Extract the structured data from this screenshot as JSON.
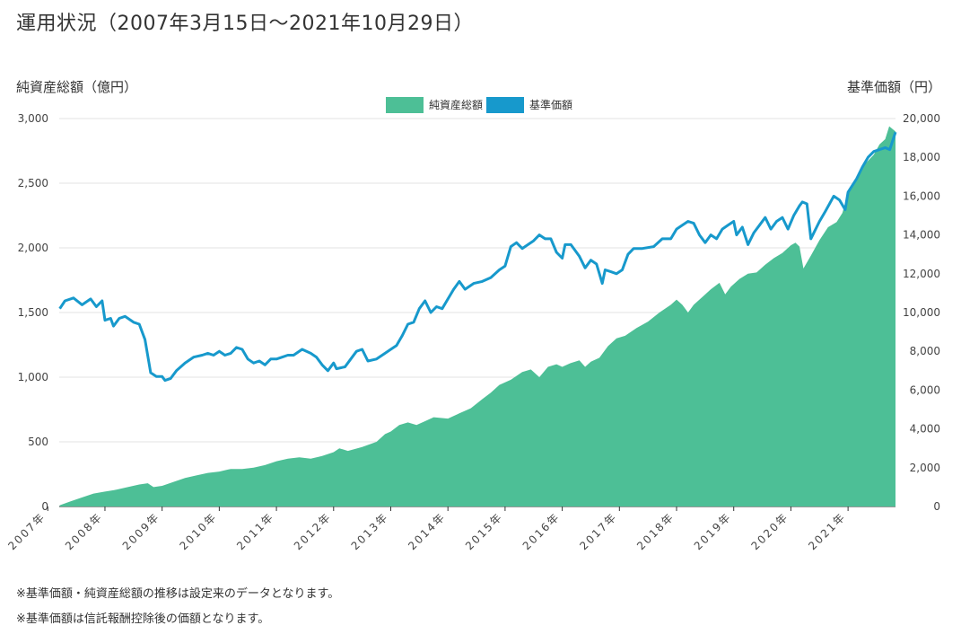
{
  "title": "運用状況（2007年3月15日〜2021年10月29日）",
  "left_axis_title": "純資産総額（億円）",
  "right_axis_title": "基準価額（円）",
  "notes": [
    "※基準価額・純資産総額の推移は設定来のデータとなります。",
    "※基準価額は信託報酬控除後の価額となります。"
  ],
  "chart_data": {
    "type": "line",
    "legend": [
      {
        "name": "純資産総額",
        "color": "#4dbf96"
      },
      {
        "name": "基準価額",
        "color": "#1799cc"
      }
    ],
    "x_ticks": [
      "2007年",
      "2008年",
      "2009年",
      "2010年",
      "2011年",
      "2012年",
      "2013年",
      "2014年",
      "2015年",
      "2016年",
      "2017年",
      "2018年",
      "2019年",
      "2020年",
      "2021年"
    ],
    "y_left_ticks": [
      "0",
      "500",
      "1,000",
      "1,500",
      "2,000",
      "2,500",
      "3,000"
    ],
    "y_right_ticks": [
      "0",
      "2,000",
      "4,000",
      "6,000",
      "8,000",
      "10,000",
      "12,000",
      "14,000",
      "16,000",
      "18,000",
      "20,000"
    ],
    "ylim_left": [
      0,
      3000
    ],
    "ylim_right": [
      0,
      20000
    ],
    "xlim": [
      2007.2,
      2021.83
    ],
    "series": [
      {
        "name": "純資産総額",
        "axis": "left",
        "type": "area",
        "color": "#4dbf96",
        "points": [
          [
            2007.21,
            10
          ],
          [
            2007.4,
            40
          ],
          [
            2007.6,
            70
          ],
          [
            2007.8,
            100
          ],
          [
            2008.0,
            115
          ],
          [
            2008.2,
            130
          ],
          [
            2008.4,
            150
          ],
          [
            2008.6,
            170
          ],
          [
            2008.75,
            180
          ],
          [
            2008.85,
            150
          ],
          [
            2009.0,
            160
          ],
          [
            2009.2,
            190
          ],
          [
            2009.4,
            220
          ],
          [
            2009.6,
            240
          ],
          [
            2009.8,
            260
          ],
          [
            2010.0,
            270
          ],
          [
            2010.2,
            290
          ],
          [
            2010.4,
            290
          ],
          [
            2010.6,
            300
          ],
          [
            2010.8,
            320
          ],
          [
            2011.0,
            350
          ],
          [
            2011.2,
            370
          ],
          [
            2011.4,
            380
          ],
          [
            2011.6,
            370
          ],
          [
            2011.8,
            390
          ],
          [
            2012.0,
            420
          ],
          [
            2012.1,
            450
          ],
          [
            2012.25,
            430
          ],
          [
            2012.5,
            460
          ],
          [
            2012.75,
            500
          ],
          [
            2012.9,
            560
          ],
          [
            2013.0,
            580
          ],
          [
            2013.15,
            630
          ],
          [
            2013.3,
            650
          ],
          [
            2013.45,
            630
          ],
          [
            2013.6,
            660
          ],
          [
            2013.75,
            690
          ],
          [
            2014.0,
            680
          ],
          [
            2014.2,
            720
          ],
          [
            2014.4,
            760
          ],
          [
            2014.6,
            830
          ],
          [
            2014.75,
            880
          ],
          [
            2014.9,
            940
          ],
          [
            2015.1,
            980
          ],
          [
            2015.3,
            1040
          ],
          [
            2015.45,
            1060
          ],
          [
            2015.6,
            1000
          ],
          [
            2015.75,
            1080
          ],
          [
            2015.9,
            1100
          ],
          [
            2016.0,
            1080
          ],
          [
            2016.15,
            1110
          ],
          [
            2016.3,
            1130
          ],
          [
            2016.4,
            1080
          ],
          [
            2016.5,
            1120
          ],
          [
            2016.65,
            1150
          ],
          [
            2016.8,
            1240
          ],
          [
            2016.95,
            1300
          ],
          [
            2017.1,
            1320
          ],
          [
            2017.3,
            1380
          ],
          [
            2017.5,
            1430
          ],
          [
            2017.7,
            1500
          ],
          [
            2017.9,
            1560
          ],
          [
            2018.0,
            1600
          ],
          [
            2018.1,
            1560
          ],
          [
            2018.2,
            1500
          ],
          [
            2018.3,
            1560
          ],
          [
            2018.45,
            1620
          ],
          [
            2018.6,
            1680
          ],
          [
            2018.75,
            1730
          ],
          [
            2018.85,
            1640
          ],
          [
            2018.95,
            1700
          ],
          [
            2019.1,
            1760
          ],
          [
            2019.25,
            1800
          ],
          [
            2019.4,
            1810
          ],
          [
            2019.55,
            1870
          ],
          [
            2019.7,
            1920
          ],
          [
            2019.85,
            1960
          ],
          [
            2020.0,
            2020
          ],
          [
            2020.08,
            2040
          ],
          [
            2020.15,
            2010
          ],
          [
            2020.22,
            1840
          ],
          [
            2020.35,
            1940
          ],
          [
            2020.5,
            2060
          ],
          [
            2020.65,
            2160
          ],
          [
            2020.8,
            2200
          ],
          [
            2020.9,
            2270
          ],
          [
            2021.0,
            2420
          ],
          [
            2021.15,
            2550
          ],
          [
            2021.3,
            2650
          ],
          [
            2021.45,
            2720
          ],
          [
            2021.55,
            2800
          ],
          [
            2021.65,
            2840
          ],
          [
            2021.72,
            2940
          ],
          [
            2021.83,
            2900
          ]
        ]
      },
      {
        "name": "基準価額",
        "axis": "right",
        "type": "line",
        "color": "#1799cc",
        "points": [
          [
            2007.21,
            10200
          ],
          [
            2007.3,
            10600
          ],
          [
            2007.45,
            10750
          ],
          [
            2007.6,
            10400
          ],
          [
            2007.75,
            10700
          ],
          [
            2007.85,
            10300
          ],
          [
            2007.95,
            10600
          ],
          [
            2008.0,
            9600
          ],
          [
            2008.1,
            9700
          ],
          [
            2008.15,
            9300
          ],
          [
            2008.25,
            9700
          ],
          [
            2008.35,
            9800
          ],
          [
            2008.5,
            9500
          ],
          [
            2008.6,
            9400
          ],
          [
            2008.7,
            8600
          ],
          [
            2008.8,
            6900
          ],
          [
            2008.9,
            6700
          ],
          [
            2009.0,
            6700
          ],
          [
            2009.05,
            6500
          ],
          [
            2009.15,
            6600
          ],
          [
            2009.25,
            7000
          ],
          [
            2009.4,
            7400
          ],
          [
            2009.55,
            7700
          ],
          [
            2009.7,
            7800
          ],
          [
            2009.8,
            7900
          ],
          [
            2009.9,
            7800
          ],
          [
            2010.0,
            8000
          ],
          [
            2010.1,
            7800
          ],
          [
            2010.2,
            7900
          ],
          [
            2010.3,
            8200
          ],
          [
            2010.4,
            8100
          ],
          [
            2010.5,
            7600
          ],
          [
            2010.6,
            7400
          ],
          [
            2010.7,
            7500
          ],
          [
            2010.8,
            7300
          ],
          [
            2010.9,
            7600
          ],
          [
            2011.0,
            7600
          ],
          [
            2011.1,
            7700
          ],
          [
            2011.2,
            7800
          ],
          [
            2011.3,
            7800
          ],
          [
            2011.45,
            8100
          ],
          [
            2011.6,
            7900
          ],
          [
            2011.7,
            7700
          ],
          [
            2011.8,
            7300
          ],
          [
            2011.9,
            7000
          ],
          [
            2012.0,
            7400
          ],
          [
            2012.05,
            7100
          ],
          [
            2012.2,
            7200
          ],
          [
            2012.3,
            7600
          ],
          [
            2012.4,
            8000
          ],
          [
            2012.5,
            8100
          ],
          [
            2012.6,
            7500
          ],
          [
            2012.75,
            7600
          ],
          [
            2012.9,
            7900
          ],
          [
            2013.0,
            8100
          ],
          [
            2013.1,
            8300
          ],
          [
            2013.2,
            8800
          ],
          [
            2013.3,
            9400
          ],
          [
            2013.4,
            9500
          ],
          [
            2013.5,
            10200
          ],
          [
            2013.6,
            10600
          ],
          [
            2013.7,
            10000
          ],
          [
            2013.8,
            10300
          ],
          [
            2013.9,
            10200
          ],
          [
            2014.0,
            10700
          ],
          [
            2014.1,
            11200
          ],
          [
            2014.2,
            11600
          ],
          [
            2014.3,
            11200
          ],
          [
            2014.45,
            11500
          ],
          [
            2014.6,
            11600
          ],
          [
            2014.75,
            11800
          ],
          [
            2014.9,
            12200
          ],
          [
            2015.0,
            12400
          ],
          [
            2015.1,
            13400
          ],
          [
            2015.2,
            13600
          ],
          [
            2015.3,
            13300
          ],
          [
            2015.4,
            13500
          ],
          [
            2015.5,
            13700
          ],
          [
            2015.6,
            14000
          ],
          [
            2015.7,
            13800
          ],
          [
            2015.8,
            13800
          ],
          [
            2015.9,
            13100
          ],
          [
            2016.0,
            12800
          ],
          [
            2016.05,
            13500
          ],
          [
            2016.15,
            13500
          ],
          [
            2016.3,
            12900
          ],
          [
            2016.4,
            12300
          ],
          [
            2016.5,
            12700
          ],
          [
            2016.6,
            12500
          ],
          [
            2016.7,
            11500
          ],
          [
            2016.75,
            12200
          ],
          [
            2016.85,
            12100
          ],
          [
            2016.95,
            12000
          ],
          [
            2017.05,
            12200
          ],
          [
            2017.15,
            13000
          ],
          [
            2017.25,
            13300
          ],
          [
            2017.4,
            13300
          ],
          [
            2017.6,
            13400
          ],
          [
            2017.75,
            13800
          ],
          [
            2017.9,
            13800
          ],
          [
            2018.0,
            14300
          ],
          [
            2018.1,
            14500
          ],
          [
            2018.2,
            14700
          ],
          [
            2018.3,
            14600
          ],
          [
            2018.4,
            14000
          ],
          [
            2018.5,
            13600
          ],
          [
            2018.6,
            14000
          ],
          [
            2018.7,
            13800
          ],
          [
            2018.8,
            14300
          ],
          [
            2018.9,
            14500
          ],
          [
            2019.0,
            14700
          ],
          [
            2019.05,
            14000
          ],
          [
            2019.15,
            14400
          ],
          [
            2019.25,
            13500
          ],
          [
            2019.35,
            14100
          ],
          [
            2019.45,
            14500
          ],
          [
            2019.55,
            14900
          ],
          [
            2019.65,
            14300
          ],
          [
            2019.75,
            14700
          ],
          [
            2019.85,
            14900
          ],
          [
            2019.95,
            14300
          ],
          [
            2020.05,
            15000
          ],
          [
            2020.15,
            15500
          ],
          [
            2020.2,
            15700
          ],
          [
            2020.28,
            15600
          ],
          [
            2020.35,
            13800
          ],
          [
            2020.5,
            14700
          ],
          [
            2020.6,
            15200
          ],
          [
            2020.75,
            16000
          ],
          [
            2020.85,
            15800
          ],
          [
            2020.95,
            15300
          ],
          [
            2021.0,
            16200
          ],
          [
            2021.15,
            16900
          ],
          [
            2021.25,
            17500
          ],
          [
            2021.35,
            18000
          ],
          [
            2021.45,
            18300
          ],
          [
            2021.55,
            18400
          ],
          [
            2021.65,
            18500
          ],
          [
            2021.73,
            18400
          ],
          [
            2021.83,
            19300
          ]
        ]
      }
    ],
    "grid": true,
    "legend_position": "top-center"
  }
}
